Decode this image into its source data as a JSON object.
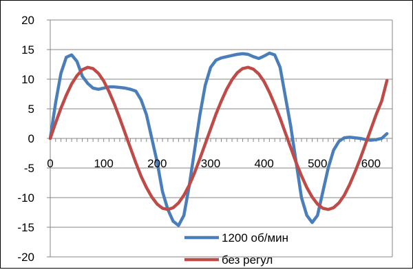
{
  "chart_data": {
    "type": "line",
    "title": "",
    "xlabel": "",
    "ylabel": "",
    "xlim": [
      0,
      640
    ],
    "ylim": [
      -20,
      20
    ],
    "x_ticks": [
      0,
      100,
      200,
      300,
      400,
      500,
      600
    ],
    "y_ticks": [
      20,
      15,
      10,
      5,
      0,
      -5,
      -10,
      -15,
      -20
    ],
    "x_tick_labels": [
      "0",
      "100",
      "200",
      "300",
      "400",
      "500",
      "600"
    ],
    "y_tick_labels": [
      "20",
      "15",
      "10",
      "5",
      "0",
      "-5",
      "-10",
      "-15",
      "-20"
    ],
    "grid": "horizontal",
    "legend_position": "bottom-right, inside plot",
    "series": [
      {
        "name": "1200 об/мин",
        "color": "#4a7ebb",
        "x": [
          0,
          10,
          20,
          30,
          40,
          50,
          60,
          70,
          80,
          90,
          100,
          110,
          120,
          130,
          140,
          150,
          160,
          170,
          180,
          190,
          200,
          210,
          220,
          230,
          240,
          250,
          260,
          270,
          280,
          290,
          300,
          310,
          320,
          330,
          340,
          350,
          360,
          370,
          380,
          390,
          400,
          410,
          420,
          430,
          440,
          450,
          460,
          470,
          480,
          490,
          500,
          510,
          520,
          530,
          540,
          550,
          560,
          570,
          580,
          590,
          600,
          610,
          620,
          630
        ],
        "values": [
          0,
          6,
          11,
          13.7,
          14.1,
          13,
          10.5,
          9.3,
          8.5,
          8.3,
          8.5,
          8.7,
          8.7,
          8.6,
          8.5,
          8.3,
          8,
          6.5,
          4,
          0,
          -4,
          -9,
          -12,
          -14,
          -14.7,
          -13,
          -8,
          -2,
          4,
          9,
          12,
          13.2,
          13.6,
          13.8,
          14,
          14.2,
          14.3,
          14.2,
          13.8,
          13.5,
          13.9,
          14.4,
          14.1,
          12,
          7,
          2,
          -4,
          -10,
          -13,
          -14.2,
          -13,
          -9,
          -5,
          -2,
          -0.5,
          0.1,
          0.2,
          0.1,
          0,
          -0.2,
          -0.3,
          -0.2,
          0,
          0.8
        ]
      },
      {
        "name": "без регул",
        "color": "#be4b48",
        "x": [
          0,
          10,
          20,
          30,
          40,
          50,
          60,
          70,
          80,
          90,
          100,
          110,
          120,
          130,
          140,
          150,
          160,
          170,
          180,
          190,
          200,
          210,
          220,
          230,
          240,
          250,
          260,
          270,
          280,
          290,
          300,
          310,
          320,
          330,
          340,
          350,
          360,
          370,
          380,
          390,
          400,
          410,
          420,
          430,
          440,
          450,
          460,
          470,
          480,
          490,
          500,
          510,
          520,
          530,
          540,
          550,
          560,
          570,
          580,
          590,
          600,
          610,
          620,
          630
        ],
        "values": [
          0,
          2.6,
          5.1,
          7.3,
          9.2,
          10.6,
          11.6,
          12,
          11.8,
          11,
          9.7,
          7.9,
          5.8,
          3.4,
          0.9,
          -1.6,
          -4.1,
          -6.4,
          -8.3,
          -9.9,
          -11.1,
          -11.8,
          -12,
          -11.7,
          -10.9,
          -9.6,
          -7.9,
          -5.8,
          -3.4,
          -0.9,
          1.6,
          4.1,
          6.3,
          8.3,
          9.9,
          11.1,
          11.8,
          12,
          11.7,
          10.9,
          9.6,
          7.8,
          5.7,
          3.4,
          0.9,
          -1.6,
          -4.1,
          -6.3,
          -8.3,
          -9.9,
          -11.1,
          -11.8,
          -12,
          -11.7,
          -10.9,
          -9.6,
          -7.8,
          -5.7,
          -3.4,
          -0.9,
          1.6,
          4.1,
          6.3,
          9.8
        ]
      }
    ]
  }
}
